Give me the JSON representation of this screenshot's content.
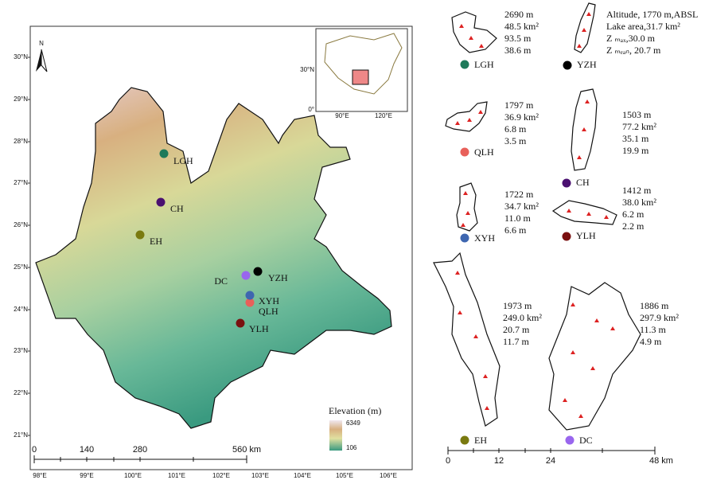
{
  "map": {
    "north": "N",
    "lat_labels": [
      "30°N",
      "29°N",
      "28°N",
      "27°N",
      "26°N",
      "25°N",
      "24°N",
      "23°N",
      "22°N",
      "21°N"
    ],
    "lon_labels": [
      "98°E",
      "99°E",
      "100°E",
      "101°E",
      "102°E",
      "103°E",
      "104°E",
      "105°E",
      "106°E"
    ],
    "scale_labels": [
      "0",
      "140",
      "280",
      "560 km"
    ],
    "legend": {
      "title": "Elevation (m)",
      "max": "6349",
      "min": "106"
    },
    "inset_labels": [
      "30°N",
      "0°",
      "90°E",
      "120°E"
    ]
  },
  "lakes": [
    {
      "label": "LGH",
      "color": "#1e7a5a",
      "stats": [
        "2690 m",
        "48.5 km²",
        "93.5 m",
        "38.6 m"
      ]
    },
    {
      "label": "YZH",
      "color": "#000000",
      "stats": [
        "Altitude, 1770 m,ABSL",
        "Lake area,31.7 km²",
        "Z ₘₐₓ,30.0 m",
        "Z ₘₑₐₙ, 20.7 m"
      ]
    },
    {
      "label": "QLH",
      "color": "#e8605a",
      "stats": [
        "1797 m",
        "36.9 km²",
        "6.8 m",
        "3.5 m"
      ]
    },
    {
      "label": "CH",
      "color": "#4a1070",
      "stats": [
        "1503 m",
        "77.2 km²",
        "35.1 m",
        "19.9 m"
      ]
    },
    {
      "label": "XYH",
      "color": "#3e66b0",
      "stats": [
        "1722 m",
        "34.7 km²",
        "11.0 m",
        "6.6 m"
      ]
    },
    {
      "label": "YLH",
      "color": "#7a1010",
      "stats": [
        "1412 m",
        "38.0 km²",
        "6.2 m",
        "2.2 m"
      ]
    },
    {
      "label": "EH",
      "color": "#7a7a10",
      "stats": [
        "1973 m",
        "249.0 km²",
        "20.7 m",
        "11.7 m"
      ]
    },
    {
      "label": "DC",
      "color": "#9966ee",
      "stats": [
        "1886 m",
        "297.9 km²",
        "11.3 m",
        "4.9 m"
      ]
    }
  ],
  "scale_labels": [
    "0",
    "12",
    "24",
    "48 km"
  ]
}
